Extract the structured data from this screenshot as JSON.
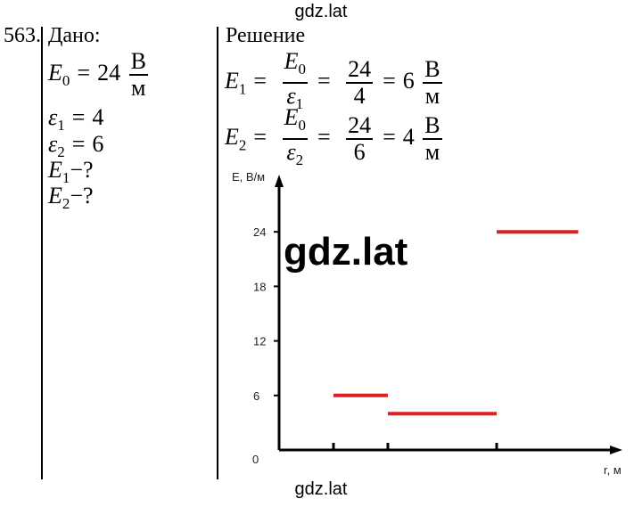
{
  "watermark": {
    "top": "gdz.lat",
    "bottom": "gdz.lat",
    "center": "gdz.lat"
  },
  "problem": {
    "number": "563.",
    "given_title": "Дано:",
    "solution_title": "Решение"
  },
  "given": {
    "e0": {
      "sym": "E",
      "sub": "0",
      "value": "24",
      "unit_num": "В",
      "unit_den": "м"
    },
    "eps1": {
      "sym": "ε",
      "sub": "1",
      "value": "4"
    },
    "eps2": {
      "sym": "ε",
      "sub": "2",
      "value": "6"
    },
    "q1": {
      "sym": "E",
      "sub": "1",
      "rest": "−?"
    },
    "q2": {
      "sym": "E",
      "sub": "2",
      "rest": "−?"
    }
  },
  "solution": {
    "line1": {
      "lhs_sym": "E",
      "lhs_sub": "1",
      "num_sym": "E",
      "num_sub": "0",
      "den_sym": "ε",
      "den_sub": "1",
      "num_val": "24",
      "den_val": "4",
      "result": "6",
      "unit_num": "В",
      "unit_den": "м"
    },
    "line2": {
      "lhs_sym": "E",
      "lhs_sub": "2",
      "num_sym": "E",
      "num_sub": "0",
      "den_sym": "ε",
      "den_sub": "2",
      "num_val": "24",
      "den_val": "6",
      "result": "4",
      "unit_num": "В",
      "unit_den": "м"
    }
  },
  "chart_data": {
    "type": "line",
    "ylabel": "E, В/м",
    "xlabel": "r, м",
    "origin_label": "0",
    "yticks": [
      "6",
      "12",
      "18",
      "24"
    ],
    "ylim": [
      0,
      30
    ],
    "xticks_count": 4,
    "series_color": "#e02020",
    "segments": [
      {
        "x": [
          1,
          2
        ],
        "y": 6
      },
      {
        "x": [
          2,
          4
        ],
        "y": 4
      },
      {
        "x": [
          4,
          5.5
        ],
        "y": 24
      }
    ]
  }
}
